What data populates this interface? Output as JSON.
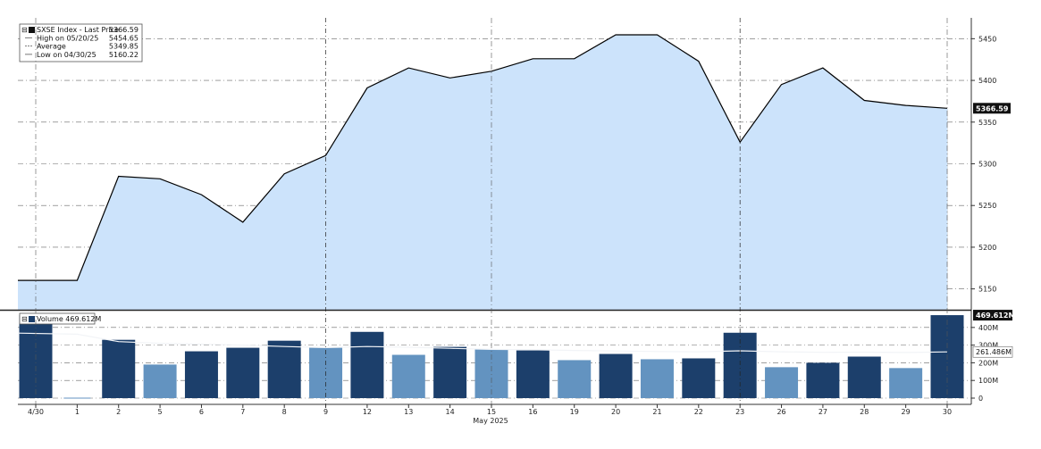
{
  "chart_data": [
    {
      "type": "area",
      "title": "",
      "legend": {
        "placement": "top-left",
        "rows": [
          {
            "label": "SXSE Index - Last Price",
            "value": "5366.59"
          },
          {
            "label": "High on 05/20/25",
            "value": "5454.65"
          },
          {
            "label": "Average",
            "value": "5349.85"
          },
          {
            "label": "Low on 04/30/25",
            "value": "5160.22"
          }
        ]
      },
      "categories": [
        "4/30",
        "1",
        "2",
        "5",
        "6",
        "7",
        "8",
        "9",
        "12",
        "13",
        "14",
        "15",
        "16",
        "19",
        "20",
        "21",
        "22",
        "23",
        "26",
        "27",
        "28",
        "29",
        "30"
      ],
      "series": [
        {
          "name": "SXSE Index - Last Price",
          "values": [
            5160.22,
            5160.22,
            5285,
            5282,
            5263,
            5230,
            5288,
            5310,
            5391,
            5415,
            5403,
            5411,
            5426,
            5426,
            5454.65,
            5454.65,
            5423,
            5326,
            5395,
            5415,
            5376,
            5370,
            5366.59
          ]
        }
      ],
      "ylim": [
        5125,
        5475
      ],
      "yticks": [
        "5150",
        "5200",
        "5250",
        "5300",
        "5350",
        "5400",
        "5450"
      ],
      "last_value_badge": "5366.59",
      "color_line": "#000000",
      "color_fill": "#cce3fb",
      "grid": true
    },
    {
      "type": "bar",
      "legend": {
        "placement": "top-left",
        "label": "Volume",
        "value": "469.612M"
      },
      "categories": [
        "4/30",
        "1",
        "2",
        "5",
        "6",
        "7",
        "8",
        "9",
        "12",
        "13",
        "14",
        "15",
        "16",
        "19",
        "20",
        "21",
        "22",
        "23",
        "26",
        "27",
        "28",
        "29",
        "30"
      ],
      "values": [
        470,
        0,
        330,
        190,
        265,
        285,
        325,
        285,
        375,
        245,
        290,
        275,
        270,
        215,
        250,
        220,
        225,
        370,
        175,
        200,
        235,
        170,
        469.612
      ],
      "bar_colors": [
        "dark",
        "dark",
        "dark",
        "light",
        "dark",
        "dark",
        "dark",
        "light",
        "dark",
        "light",
        "dark",
        "light",
        "dark",
        "light",
        "dark",
        "light",
        "dark",
        "dark",
        "light",
        "dark",
        "dark",
        "light",
        "dark"
      ],
      "moving_average": [
        368,
        362,
        320,
        310,
        305,
        300,
        292,
        286,
        292,
        288,
        282,
        276,
        274,
        270,
        267,
        264,
        262,
        268,
        262,
        259,
        260,
        258,
        261.486
      ],
      "ylim": [
        0,
        480
      ],
      "yticks": [
        "0",
        "100M",
        "200M",
        "300M",
        "400M"
      ],
      "last_value_badge": "469.612M",
      "ma_badge": "261.486M",
      "color_dark": "#1c3f6b",
      "color_light": "#6393c0",
      "grid": true
    }
  ],
  "x_axis": {
    "tick_labels": [
      "4/30",
      "1",
      "2",
      "5",
      "6",
      "7",
      "8",
      "9",
      "12",
      "13",
      "14",
      "15",
      "16",
      "19",
      "20",
      "21",
      "22",
      "23",
      "26",
      "27",
      "28",
      "29",
      "30"
    ],
    "month_label": "May 2025"
  }
}
